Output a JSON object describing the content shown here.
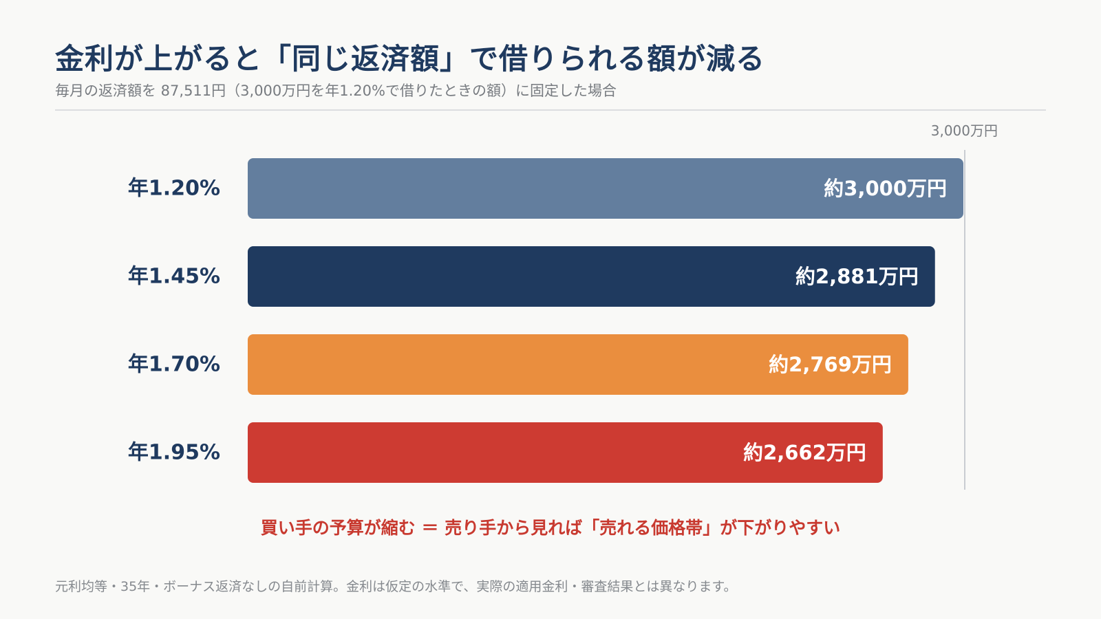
{
  "header": {
    "title": "金利が上がると「同じ返済額」で借りられる額が減る",
    "subtitle": "毎月の返済額を 87,511円（3,000万円を年1.20%で借りたときの額）に固定した場合"
  },
  "chart_data": {
    "type": "bar",
    "orientation": "horizontal",
    "categories": [
      "年1.20%",
      "年1.45%",
      "年1.70%",
      "年1.95%"
    ],
    "values": [
      3000,
      2881,
      2769,
      2662
    ],
    "value_labels": [
      "約3,000万円",
      "約2,881万円",
      "約2,769万円",
      "約2,662万円"
    ],
    "colors": [
      "#637e9e",
      "#1f3a5f",
      "#ea8e3e",
      "#cd3b32"
    ],
    "unit": "万円",
    "reference_line": {
      "value": 3000,
      "label": "3,000万円"
    },
    "xlim": [
      0,
      3000
    ],
    "grid": false,
    "legend": "none"
  },
  "note": "買い手の予算が縮む ＝ 売り手から見れば「売れる価格帯」が下がりやすい",
  "footnote": "元利均等・35年・ボーナス返済なしの自前計算。金利は仮定の水準で、実際の適用金利・審査結果とは異なります。"
}
